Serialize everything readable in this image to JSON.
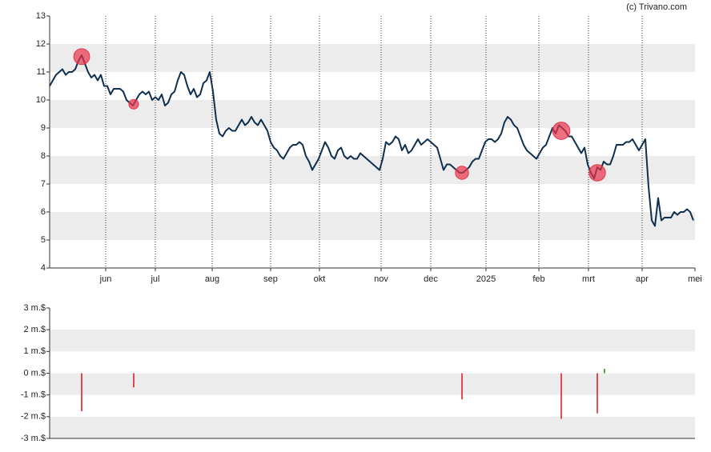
{
  "credit": "(c) Trivano.com",
  "chart_data": [
    {
      "type": "line",
      "xlim": [
        0,
        201.5
      ],
      "ylim": [
        4,
        13
      ],
      "yticks": [
        4,
        5,
        6,
        7,
        8,
        9,
        10,
        11,
        12,
        13
      ],
      "xticks": [
        {
          "value": 17.5,
          "label": "jun"
        },
        {
          "value": 33,
          "label": "jul"
        },
        {
          "value": 50.75,
          "label": "aug"
        },
        {
          "value": 69,
          "label": "sep"
        },
        {
          "value": 84.25,
          "label": "okt"
        },
        {
          "value": 103.5,
          "label": "nov"
        },
        {
          "value": 119,
          "label": "dec"
        },
        {
          "value": 136.25,
          "label": "2025"
        },
        {
          "value": 152.75,
          "label": "feb"
        },
        {
          "value": 168.25,
          "label": "mrt"
        },
        {
          "value": 185,
          "label": "apr"
        },
        {
          "value": 201.5,
          "label": "mei"
        }
      ],
      "color": "#0f2f4f",
      "grid": true,
      "values": [
        10.5,
        10.7,
        10.9,
        11.0,
        11.1,
        10.9,
        11.0,
        11.0,
        11.1,
        11.4,
        11.6,
        11.3,
        11.0,
        10.8,
        10.9,
        10.7,
        10.9,
        10.5,
        10.5,
        10.2,
        10.4,
        10.4,
        10.4,
        10.3,
        10.0,
        9.9,
        9.8,
        10.0,
        10.2,
        10.3,
        10.2,
        10.3,
        10.0,
        10.1,
        10.0,
        10.2,
        9.8,
        9.9,
        10.2,
        10.3,
        10.7,
        11.0,
        10.9,
        10.5,
        10.2,
        10.4,
        10.1,
        10.2,
        10.6,
        10.7,
        11.0,
        10.3,
        9.3,
        8.8,
        8.7,
        8.9,
        9.0,
        8.9,
        8.9,
        9.1,
        9.3,
        9.1,
        9.2,
        9.4,
        9.2,
        9.1,
        9.3,
        9.1,
        8.9,
        8.5,
        8.3,
        8.2,
        8.0,
        7.9,
        8.1,
        8.3,
        8.4,
        8.4,
        8.5,
        8.4,
        8.0,
        7.8,
        7.5,
        7.7,
        7.9,
        8.2,
        8.5,
        8.3,
        8.0,
        7.9,
        8.2,
        8.3,
        8.0,
        7.9,
        8.0,
        7.9,
        7.9,
        8.1,
        8.0,
        7.9,
        7.8,
        7.7,
        7.6,
        7.5,
        7.9,
        8.5,
        8.4,
        8.5,
        8.7,
        8.6,
        8.2,
        8.4,
        8.1,
        8.2,
        8.4,
        8.6,
        8.4,
        8.5,
        8.6,
        8.5,
        8.4,
        8.3,
        7.9,
        7.5,
        7.7,
        7.7,
        7.6,
        7.5,
        7.4,
        7.4,
        7.5,
        7.6,
        7.8,
        7.9,
        7.9,
        8.2,
        8.5,
        8.6,
        8.6,
        8.5,
        8.6,
        8.8,
        9.2,
        9.4,
        9.3,
        9.1,
        9.0,
        8.7,
        8.4,
        8.2,
        8.1,
        8.0,
        7.9,
        8.1,
        8.3,
        8.4,
        8.7,
        9.0,
        8.8,
        9.1,
        9.0,
        8.9,
        8.7,
        8.7,
        8.5,
        8.3,
        8.1,
        8.3,
        7.7,
        7.4,
        7.2,
        7.6,
        7.5,
        7.8,
        7.7,
        7.7,
        8.0,
        8.4,
        8.4,
        8.4,
        8.5,
        8.5,
        8.6,
        8.4,
        8.2,
        8.4,
        8.6,
        6.9,
        5.7,
        5.5,
        6.5,
        5.7,
        5.8,
        5.8,
        5.8,
        6.0,
        5.9,
        6.0,
        6.0,
        6.1,
        6.0,
        5.7
      ],
      "markers": {
        "color": "#e8334a",
        "x": [
          10,
          26.25,
          128.75,
          159.75,
          171
        ],
        "values": [
          11.55,
          9.85,
          7.4,
          8.9,
          7.4
        ]
      }
    },
    {
      "type": "bar",
      "xlim": [
        0,
        201.5
      ],
      "ylim": [
        -3,
        3
      ],
      "yticks": [
        {
          "value": -3,
          "label": "-3 m.$"
        },
        {
          "value": -2,
          "label": "-2 m.$"
        },
        {
          "value": -1,
          "label": "-1 m.$"
        },
        {
          "value": 0,
          "label": "0 m.$"
        },
        {
          "value": 1,
          "label": "1 m.$"
        },
        {
          "value": 2,
          "label": "2 m.$"
        },
        {
          "value": 3,
          "label": "3 m.$"
        }
      ],
      "x": [
        10,
        26.25,
        128.75,
        159.75,
        171,
        173.25
      ],
      "values": [
        -1.75,
        -0.65,
        -1.2,
        -2.1,
        -1.85,
        0.2
      ],
      "colors": {
        "negative": "#e0202a",
        "positive": "#2a8a2a"
      }
    }
  ]
}
